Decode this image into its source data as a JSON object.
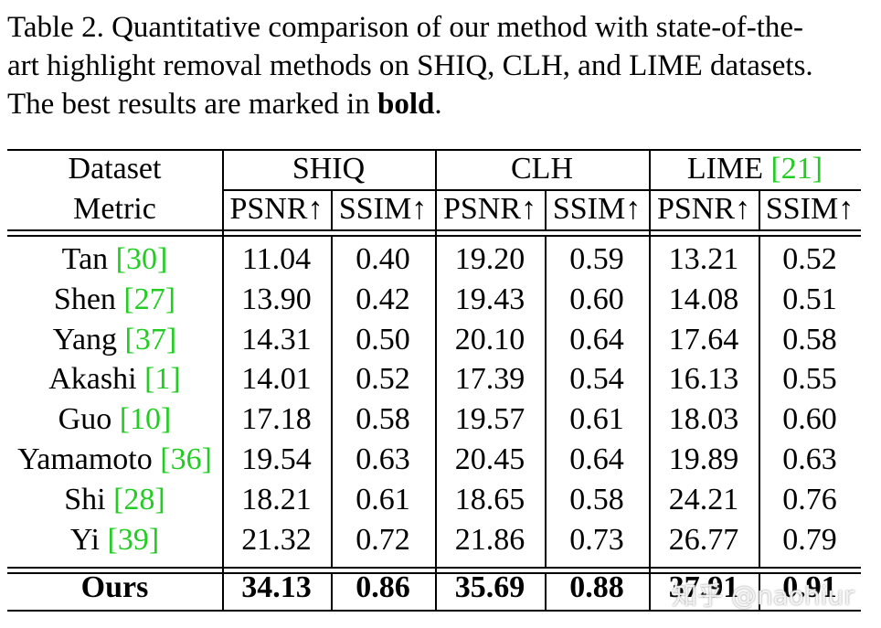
{
  "caption": {
    "lines": [
      "Table 2. Quantitative comparison of our method with state-of-the-",
      "art highlight removal methods on SHIQ, CLH, and LIME datasets."
    ],
    "last_line": [
      "The best results are marked in ",
      "bold",
      "."
    ]
  },
  "table": {
    "header": {
      "dataset_label": "Dataset",
      "metric_label": "Metric",
      "datasets": [
        {
          "name": "SHIQ"
        },
        {
          "name": "CLH"
        },
        {
          "name": "LIME",
          "ref": "21"
        }
      ],
      "metrics": [
        "PSNR↑",
        "SSIM↑",
        "PSNR↑",
        "SSIM↑",
        "PSNR↑",
        "SSIM↑"
      ]
    },
    "rows": [
      {
        "method": "Tan",
        "ref": "30",
        "values": [
          "11.04",
          "0.40",
          "19.20",
          "0.59",
          "13.21",
          "0.52"
        ]
      },
      {
        "method": "Shen",
        "ref": "27",
        "values": [
          "13.90",
          "0.42",
          "19.43",
          "0.60",
          "14.08",
          "0.51"
        ]
      },
      {
        "method": "Yang",
        "ref": "37",
        "values": [
          "14.31",
          "0.50",
          "20.10",
          "0.64",
          "17.64",
          "0.58"
        ]
      },
      {
        "method": "Akashi",
        "ref": "1",
        "values": [
          "14.01",
          "0.52",
          "17.39",
          "0.54",
          "16.13",
          "0.55"
        ]
      },
      {
        "method": "Guo",
        "ref": "10",
        "values": [
          "17.18",
          "0.58",
          "19.57",
          "0.61",
          "18.03",
          "0.60"
        ]
      },
      {
        "method": "Yamamoto",
        "ref": "36",
        "values": [
          "19.54",
          "0.63",
          "20.45",
          "0.64",
          "19.89",
          "0.63"
        ]
      },
      {
        "method": "Shi",
        "ref": "28",
        "values": [
          "18.21",
          "0.61",
          "18.65",
          "0.58",
          "24.21",
          "0.76"
        ]
      },
      {
        "method": "Yi",
        "ref": "39",
        "values": [
          "21.32",
          "0.72",
          "21.86",
          "0.73",
          "26.77",
          "0.79"
        ]
      }
    ],
    "ours": {
      "method": "Ours",
      "values": [
        "34.13",
        "0.86",
        "35.69",
        "0.88",
        "37.91",
        "0.91"
      ]
    }
  },
  "watermark": "知乎 @naohiur"
}
